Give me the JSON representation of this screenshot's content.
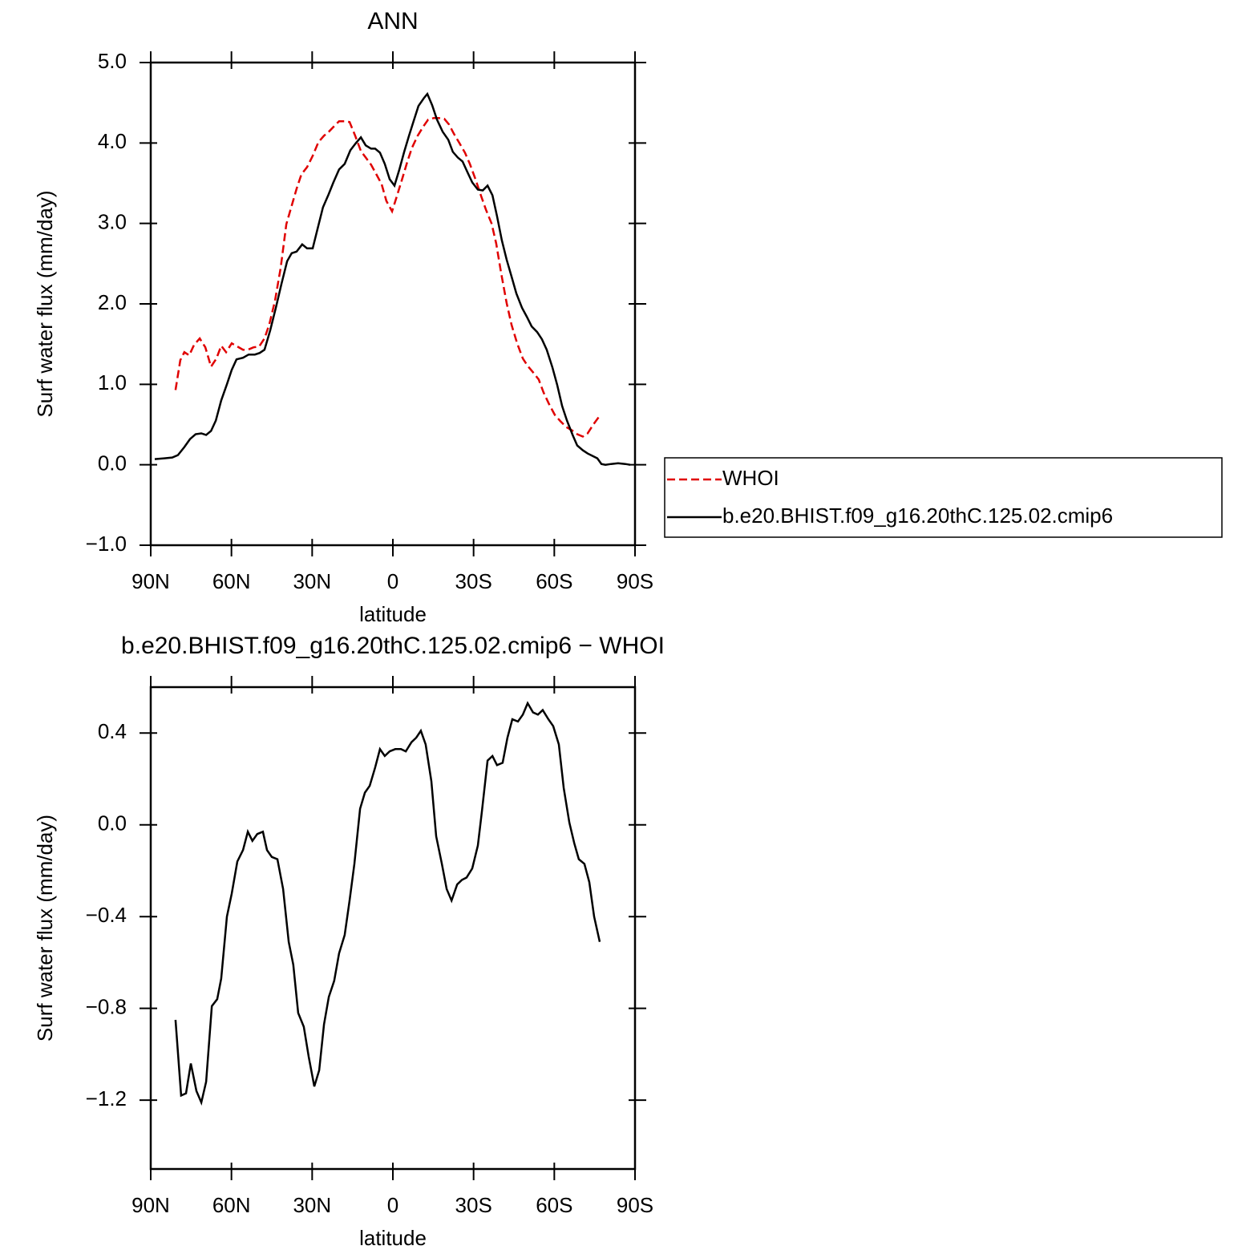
{
  "chart_data": [
    {
      "type": "line",
      "title": "ANN",
      "xlabel": "latitude",
      "ylabel": "Surf water flux (mm/day)",
      "xlim": [
        90,
        -90
      ],
      "ylim": [
        -1,
        5
      ],
      "xticks": [
        {
          "value": 90,
          "label": "90N"
        },
        {
          "value": 60,
          "label": "60N"
        },
        {
          "value": 30,
          "label": "30N"
        },
        0,
        {
          "value": -30,
          "label": "30S"
        },
        {
          "value": -60,
          "label": "60S"
        },
        {
          "value": -90,
          "label": "90S"
        }
      ],
      "yticks": [
        {
          "value": 5,
          "label": "5.0"
        },
        {
          "value": 4,
          "label": "4.0"
        },
        {
          "value": 3,
          "label": "3.0"
        },
        {
          "value": 2,
          "label": "2.0"
        },
        {
          "value": 1,
          "label": "1.0"
        },
        {
          "value": 0,
          "label": "0.0"
        },
        {
          "value": -1,
          "label": "−1.0"
        }
      ],
      "legend": "right",
      "series": [
        {
          "name": "WHOI",
          "color": "#e00000",
          "dash": true,
          "x": [
            80.8,
            79.0,
            77.5,
            75.7,
            73.9,
            71.8,
            69.7,
            67.6,
            65.6,
            63.8,
            62.0,
            59.9,
            57.8,
            55.7,
            53.9,
            51.8,
            49.7,
            47.7,
            45.9,
            43.8,
            41.7,
            39.6,
            37.8,
            35.8,
            34.0,
            31.9,
            29.8,
            27.7,
            25.6,
            23.8,
            21.8,
            20.0,
            17.9,
            16.1,
            14.0,
            11.9,
            10.1,
            8.1,
            6.3,
            4.2,
            2.4,
            0.3,
            -1.5,
            -3.6,
            -5.4,
            -7.1,
            -9.2,
            -11.4,
            -13.1,
            -15.2,
            -17.0,
            -19.1,
            -20.9,
            -22.6,
            -24.7,
            -26.8,
            -28.6,
            -30.7,
            -32.8,
            -34.6,
            -36.7,
            -38.4,
            -40.2,
            -42.3,
            -44.1,
            -46.2,
            -48.3,
            -50.1,
            -52.1,
            -54.2,
            -56.0,
            -58.1,
            -60.2,
            -62.3,
            -64.4,
            -66.5,
            -68.5,
            -70.6,
            -72.4,
            -74.5,
            -76.9
          ],
          "values": [
            0.93,
            1.3,
            1.4,
            1.36,
            1.49,
            1.57,
            1.46,
            1.22,
            1.32,
            1.48,
            1.4,
            1.51,
            1.47,
            1.43,
            1.43,
            1.46,
            1.47,
            1.57,
            1.75,
            2.04,
            2.45,
            2.99,
            3.2,
            3.43,
            3.61,
            3.7,
            3.84,
            4.01,
            4.09,
            4.14,
            4.21,
            4.27,
            4.27,
            4.26,
            4.09,
            3.9,
            3.82,
            3.73,
            3.62,
            3.49,
            3.28,
            3.15,
            3.34,
            3.57,
            3.77,
            3.94,
            4.09,
            4.21,
            4.29,
            4.31,
            4.31,
            4.3,
            4.23,
            4.12,
            4.0,
            3.88,
            3.74,
            3.55,
            3.34,
            3.17,
            3.0,
            2.75,
            2.39,
            2.01,
            1.74,
            1.51,
            1.32,
            1.23,
            1.15,
            1.06,
            0.9,
            0.75,
            0.62,
            0.54,
            0.47,
            0.43,
            0.38,
            0.35,
            0.39,
            0.5,
            0.61
          ]
        },
        {
          "name": "b.e20.BHIST.f09_g16.20thC.125.02.cmip6",
          "color": "#000000",
          "dash": false,
          "x": [
            88.5,
            84.9,
            82.0,
            79.9,
            77.5,
            75.4,
            73.3,
            71.2,
            69.4,
            67.6,
            65.8,
            63.8,
            61.7,
            59.9,
            58.1,
            55.7,
            53.6,
            51.3,
            49.5,
            47.7,
            45.6,
            43.5,
            41.4,
            39.3,
            37.6,
            35.8,
            33.7,
            31.9,
            29.8,
            28.0,
            26.0,
            23.9,
            22.1,
            20.0,
            17.9,
            15.8,
            13.7,
            11.9,
            10.1,
            8.1,
            6.6,
            4.8,
            3.0,
            1.2,
            -0.6,
            -2.4,
            -4.2,
            -6.0,
            -7.7,
            -9.5,
            -11.6,
            -12.8,
            -14.6,
            -16.4,
            -18.5,
            -20.6,
            -22.3,
            -24.1,
            -25.9,
            -27.7,
            -29.5,
            -31.6,
            -33.4,
            -35.2,
            -37.0,
            -38.7,
            -40.5,
            -42.3,
            -44.1,
            -45.9,
            -48.0,
            -49.8,
            -51.6,
            -53.6,
            -55.4,
            -57.2,
            -59.3,
            -61.1,
            -62.9,
            -64.7,
            -66.8,
            -68.5,
            -70.6,
            -72.4,
            -74.2,
            -76.0,
            -77.5,
            -79.0,
            -81.1,
            -83.7,
            -86.4,
            -88.2
          ],
          "values": [
            0.07,
            0.08,
            0.09,
            0.12,
            0.22,
            0.32,
            0.38,
            0.39,
            0.37,
            0.42,
            0.55,
            0.8,
            1.0,
            1.18,
            1.31,
            1.33,
            1.37,
            1.37,
            1.39,
            1.43,
            1.67,
            1.95,
            2.25,
            2.53,
            2.63,
            2.65,
            2.74,
            2.69,
            2.69,
            2.93,
            3.2,
            3.36,
            3.51,
            3.67,
            3.74,
            3.91,
            4.0,
            4.07,
            3.97,
            3.93,
            3.93,
            3.88,
            3.74,
            3.55,
            3.47,
            3.67,
            3.89,
            4.09,
            4.27,
            4.46,
            4.56,
            4.61,
            4.47,
            4.29,
            4.14,
            4.04,
            3.89,
            3.82,
            3.77,
            3.64,
            3.51,
            3.42,
            3.41,
            3.47,
            3.35,
            3.09,
            2.79,
            2.55,
            2.34,
            2.13,
            1.95,
            1.84,
            1.72,
            1.65,
            1.56,
            1.43,
            1.21,
            0.99,
            0.73,
            0.55,
            0.37,
            0.24,
            0.18,
            0.14,
            0.11,
            0.08,
            0.01,
            0.0,
            0.01,
            0.02,
            0.01,
            0.0
          ]
        }
      ]
    },
    {
      "type": "line",
      "title": "b.e20.BHIST.f09_g16.20thC.125.02.cmip6 − WHOI",
      "xlabel": "latitude",
      "ylabel": "Surf water flux (mm/day)",
      "xlim": [
        90,
        -90
      ],
      "ylim": [
        -1.5,
        0.6
      ],
      "xticks": [
        {
          "value": 90,
          "label": "90N"
        },
        {
          "value": 60,
          "label": "60N"
        },
        {
          "value": 30,
          "label": "30N"
        },
        0,
        {
          "value": -30,
          "label": "30S"
        },
        {
          "value": -60,
          "label": "60S"
        },
        {
          "value": -90,
          "label": "90S"
        }
      ],
      "yticks": [
        0.4,
        {
          "value": 0,
          "label": "0.0"
        },
        {
          "value": -0.4,
          "label": "−0.4"
        },
        {
          "value": -0.8,
          "label": "−0.8"
        },
        {
          "value": -1.2,
          "label": "−1.2"
        }
      ],
      "series": [
        {
          "color": "#000000",
          "dash": false,
          "x": [
            80.8,
            78.7,
            76.9,
            75.1,
            73.0,
            71.2,
            69.4,
            67.3,
            65.3,
            63.8,
            61.7,
            59.9,
            57.8,
            55.7,
            53.9,
            52.2,
            50.4,
            48.3,
            46.8,
            45.0,
            42.9,
            40.8,
            38.7,
            37.0,
            35.2,
            33.1,
            31.3,
            29.2,
            27.4,
            25.6,
            23.8,
            21.8,
            20.0,
            17.9,
            16.1,
            14.3,
            12.2,
            10.4,
            8.6,
            6.6,
            4.8,
            3.0,
            1.2,
            -0.9,
            -3.0,
            -4.8,
            -6.9,
            -8.7,
            -10.4,
            -12.2,
            -14.3,
            -16.1,
            -18.2,
            -20.0,
            -21.8,
            -23.9,
            -25.7,
            -27.4,
            -29.5,
            -31.6,
            -33.1,
            -35.2,
            -37.0,
            -38.7,
            -40.8,
            -42.6,
            -44.4,
            -46.5,
            -48.3,
            -50.1,
            -52.1,
            -53.9,
            -55.7,
            -57.8,
            -59.6,
            -61.7,
            -63.5,
            -65.6,
            -67.4,
            -69.1,
            -71.2,
            -73.0,
            -74.8,
            -76.9
          ],
          "values": [
            -0.85,
            -1.18,
            -1.17,
            -1.04,
            -1.16,
            -1.21,
            -1.12,
            -0.79,
            -0.76,
            -0.67,
            -0.4,
            -0.3,
            -0.16,
            -0.11,
            -0.03,
            -0.07,
            -0.04,
            -0.03,
            -0.11,
            -0.14,
            -0.15,
            -0.28,
            -0.51,
            -0.61,
            -0.82,
            -0.88,
            -1.01,
            -1.14,
            -1.07,
            -0.87,
            -0.75,
            -0.68,
            -0.56,
            -0.48,
            -0.33,
            -0.17,
            0.07,
            0.14,
            0.17,
            0.25,
            0.33,
            0.3,
            0.32,
            0.33,
            0.33,
            0.32,
            0.36,
            0.38,
            0.41,
            0.35,
            0.19,
            -0.05,
            -0.17,
            -0.28,
            -0.33,
            -0.26,
            -0.24,
            -0.23,
            -0.19,
            -0.09,
            0.06,
            0.28,
            0.3,
            0.26,
            0.27,
            0.38,
            0.46,
            0.45,
            0.48,
            0.53,
            0.49,
            0.48,
            0.5,
            0.46,
            0.43,
            0.35,
            0.16,
            0.01,
            -0.08,
            -0.15,
            -0.17,
            -0.25,
            -0.4,
            -0.51
          ]
        }
      ]
    }
  ]
}
